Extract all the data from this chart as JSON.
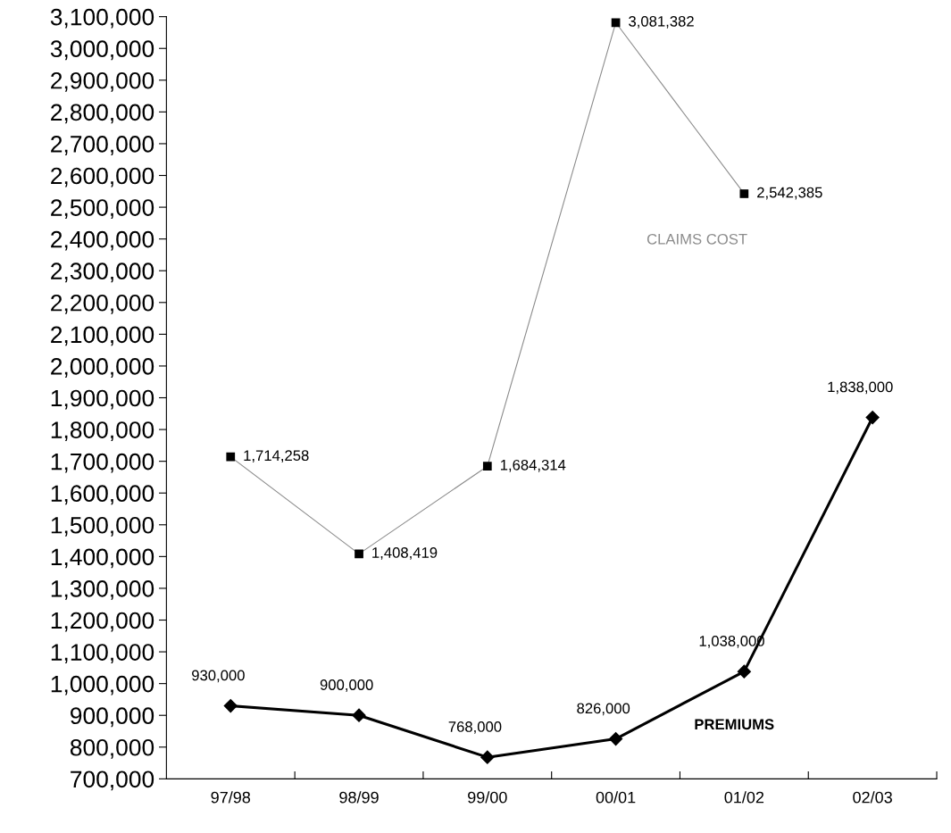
{
  "chart_data": {
    "type": "line",
    "categories": [
      "97/98",
      "98/99",
      "99/00",
      "00/01",
      "01/02",
      "02/03"
    ],
    "series": [
      {
        "name": "CLAIMS COST",
        "color": "#8c8c8c",
        "marker": "square",
        "line_style": "solid",
        "values": [
          1714258,
          1408419,
          1684314,
          3081382,
          2542385,
          null
        ],
        "value_labels": [
          "1,714,258",
          "1,408,419",
          "1,684,314",
          "3,081,382",
          "2,542,385",
          null
        ]
      },
      {
        "name": "PREMIUMS",
        "color": "#000000",
        "marker": "diamond",
        "line_style": "solid",
        "values": [
          930000,
          900000,
          768000,
          826000,
          1038000,
          1838000
        ],
        "value_labels": [
          "930,000",
          "900,000",
          "768,000",
          "826,000",
          "1,038,000",
          "1,838,000"
        ]
      }
    ],
    "ylim": [
      700000,
      3100000
    ],
    "yticks": [
      {
        "value": 700000,
        "label": "700,000"
      },
      {
        "value": 800000,
        "label": "800,000"
      },
      {
        "value": 900000,
        "label": "900,000"
      },
      {
        "value": 1000000,
        "label": "1,000,000"
      },
      {
        "value": 1100000,
        "label": "1,100,000"
      },
      {
        "value": 1200000,
        "label": "1,200,000"
      },
      {
        "value": 1300000,
        "label": "1,300,000"
      },
      {
        "value": 1400000,
        "label": "1,400,000"
      },
      {
        "value": 1500000,
        "label": "1,500,000"
      },
      {
        "value": 1600000,
        "label": "1,600,000"
      },
      {
        "value": 1700000,
        "label": "1,700,000"
      },
      {
        "value": 1800000,
        "label": "1,800,000"
      },
      {
        "value": 1900000,
        "label": "1,900,000"
      },
      {
        "value": 2000000,
        "label": "2,000,000"
      },
      {
        "value": 2100000,
        "label": "2,100,000"
      },
      {
        "value": 2200000,
        "label": "2,200,000"
      },
      {
        "value": 2300000,
        "label": "2,300,000"
      },
      {
        "value": 2400000,
        "label": "2,400,000"
      },
      {
        "value": 2500000,
        "label": "2,500,000"
      },
      {
        "value": 2600000,
        "label": "2,600,000"
      },
      {
        "value": 2700000,
        "label": "2,700,000"
      },
      {
        "value": 2800000,
        "label": "2,800,000"
      },
      {
        "value": 2900000,
        "label": "2,900,000"
      },
      {
        "value": 3000000,
        "label": "3,000,000"
      },
      {
        "value": 3100000,
        "label": "3,100,000"
      }
    ],
    "grid": false,
    "legend": false
  }
}
